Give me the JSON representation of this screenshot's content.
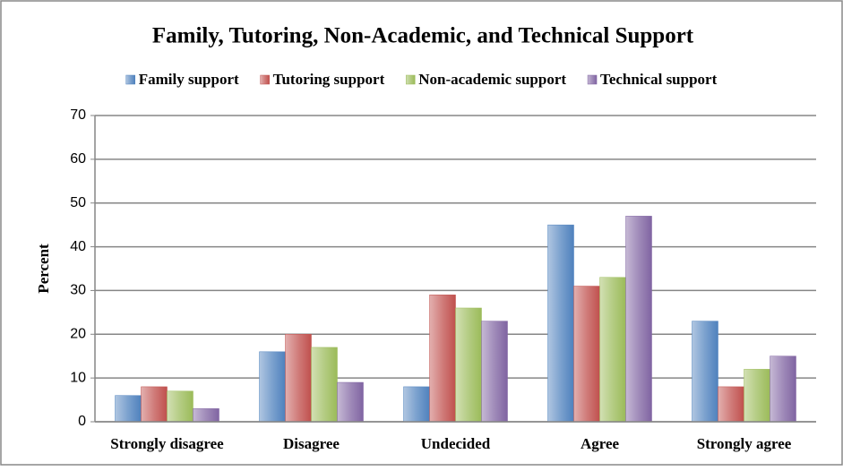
{
  "chart_data": {
    "type": "bar",
    "title": "Family, Tutoring, Non-Academic, and Technical Support",
    "y_label": "Percent",
    "categories": [
      "Strongly disagree",
      "Disagree",
      "Undecided",
      "Agree",
      "Strongly agree"
    ],
    "series": [
      {
        "name": "Family support",
        "color": "#4f81bd",
        "values": [
          6,
          16,
          8,
          45,
          23
        ]
      },
      {
        "name": "Tutoring support",
        "color": "#c0504d",
        "values": [
          8,
          20,
          29,
          31,
          8
        ]
      },
      {
        "name": "Non-academic support",
        "color": "#9bbb59",
        "values": [
          7,
          17,
          26,
          33,
          12
        ]
      },
      {
        "name": "Technical support",
        "color": "#8064a2",
        "values": [
          3,
          9,
          23,
          47,
          15
        ]
      }
    ],
    "ylim": [
      0,
      70
    ],
    "yticks": [
      0,
      10,
      20,
      30,
      40,
      50,
      60,
      70
    ],
    "grid": true,
    "legend": "top"
  }
}
